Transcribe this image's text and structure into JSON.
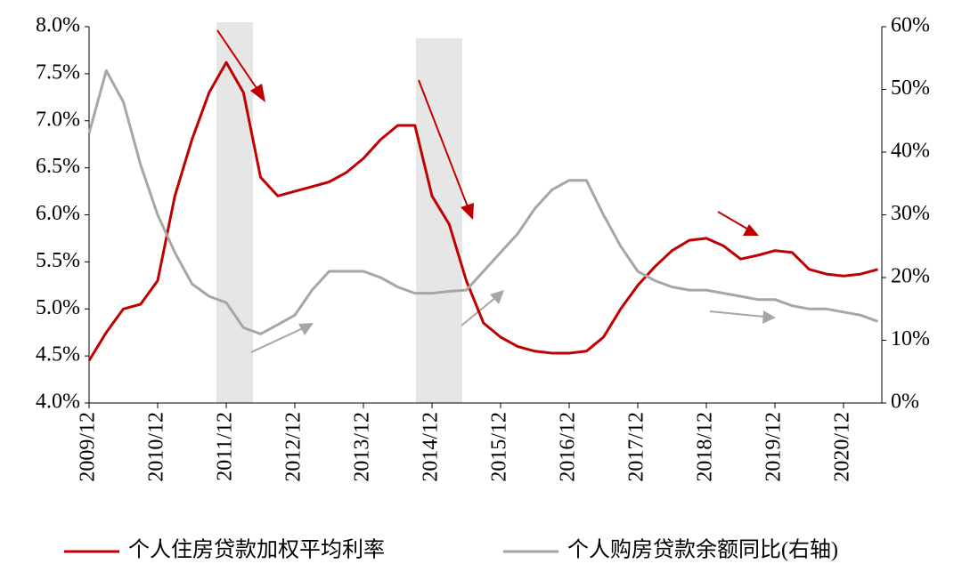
{
  "chart_data": {
    "type": "line",
    "categories": [
      "2009/12",
      null,
      null,
      null,
      "2010/12",
      null,
      null,
      null,
      "2011/12",
      null,
      null,
      null,
      "2012/12",
      null,
      null,
      null,
      "2013/12",
      null,
      null,
      null,
      "2014/12",
      null,
      null,
      null,
      "2015/12",
      null,
      null,
      null,
      "2016/12",
      null,
      null,
      null,
      "2017/12",
      null,
      null,
      null,
      "2018/12",
      null,
      null,
      null,
      "2019/12",
      null,
      null,
      null,
      "2020/12",
      null,
      null
    ],
    "series": [
      {
        "name": "个人住房贷款加权平均利率",
        "color": "#c00000",
        "values": [
          4.45,
          4.75,
          5.0,
          5.05,
          5.3,
          6.2,
          6.8,
          7.3,
          7.62,
          7.3,
          6.4,
          6.2,
          6.25,
          6.3,
          6.35,
          6.45,
          6.6,
          6.8,
          6.95,
          6.95,
          6.2,
          5.9,
          5.3,
          4.85,
          4.7,
          4.6,
          4.55,
          4.53,
          4.53,
          4.55,
          4.7,
          5.0,
          5.25,
          5.45,
          5.62,
          5.73,
          5.75,
          5.67,
          5.53,
          5.57,
          5.62,
          5.6,
          5.42,
          5.37,
          5.35,
          5.37,
          5.42
        ]
      },
      {
        "name": "个人购房贷款余额同比(右轴)",
        "color": "#a6a6a6",
        "axis": "y2",
        "values": [
          43,
          53,
          48,
          38,
          30,
          24,
          19,
          17,
          16,
          12,
          11,
          12.5,
          14,
          18,
          21,
          21,
          21,
          20,
          18.5,
          17.5,
          17.5,
          17.8,
          18,
          21,
          24,
          27,
          31,
          34,
          35.5,
          35.5,
          30,
          25,
          21,
          19.5,
          18.5,
          18,
          18,
          17.5,
          17,
          16.5,
          16.5,
          15.5,
          15,
          15,
          14.5,
          14,
          13
        ]
      }
    ],
    "ylim": [
      4,
      8
    ],
    "yticks": [
      {
        "value": 4,
        "label": "4.0%"
      },
      {
        "value": 4.5,
        "label": "4.5%"
      },
      {
        "value": 5,
        "label": "5.0%"
      },
      {
        "value": 5.5,
        "label": "5.5%"
      },
      {
        "value": 6,
        "label": "6.0%"
      },
      {
        "value": 6.5,
        "label": "6.5%"
      },
      {
        "value": 7,
        "label": "7.0%"
      },
      {
        "value": 7.5,
        "label": "7.5%"
      },
      {
        "value": 8,
        "label": "8.0%"
      }
    ],
    "y2lim": [
      0,
      60
    ],
    "y2ticks": [
      {
        "value": 0,
        "label": "0%"
      },
      {
        "value": 10,
        "label": "10%"
      },
      {
        "value": 20,
        "label": "20%"
      },
      {
        "value": 30,
        "label": "30%"
      },
      {
        "value": 40,
        "label": "40%"
      },
      {
        "value": 50,
        "label": "50%"
      },
      {
        "value": 60,
        "label": "60%"
      }
    ],
    "legend": "bottom"
  }
}
